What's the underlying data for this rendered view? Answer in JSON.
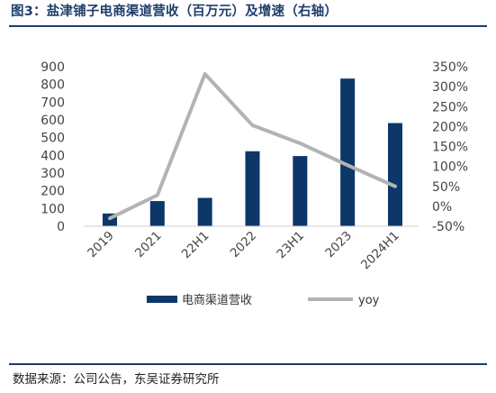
{
  "title": "图3：盐津铺子电商渠道营收（百万元）及增速（右轴）",
  "source": "数据来源：公司公告，东吴证券研究所",
  "colors": {
    "bar": "#0d3768",
    "line": "#b3b3b3",
    "title": "#1f3d6b",
    "axis_text": "#444444"
  },
  "chart_data": {
    "type": "bar",
    "categories": [
      "2019",
      "2021",
      "22H1",
      "2022",
      "23H1",
      "2023",
      "2024H1"
    ],
    "series": [
      {
        "name": "电商渠道营收",
        "type": "bar",
        "axis": "left",
        "values": [
          72,
          142,
          160,
          423,
          396,
          833,
          582
        ]
      },
      {
        "name": "yoy",
        "type": "line",
        "axis": "right",
        "values": [
          -0.3,
          0.28,
          3.32,
          2.03,
          1.58,
          1.03,
          0.5
        ]
      }
    ],
    "y_left": {
      "min": 0,
      "max": 900,
      "step": 100,
      "tick_labels": [
        "0",
        "100",
        "200",
        "300",
        "400",
        "500",
        "600",
        "700",
        "800",
        "900"
      ]
    },
    "y_right": {
      "min": -0.5,
      "max": 3.5,
      "step": 0.5,
      "tick_labels": [
        "-50%",
        "0%",
        "50%",
        "100%",
        "150%",
        "200%",
        "250%",
        "300%",
        "350%"
      ]
    },
    "legend_position": "bottom",
    "grid": false
  }
}
